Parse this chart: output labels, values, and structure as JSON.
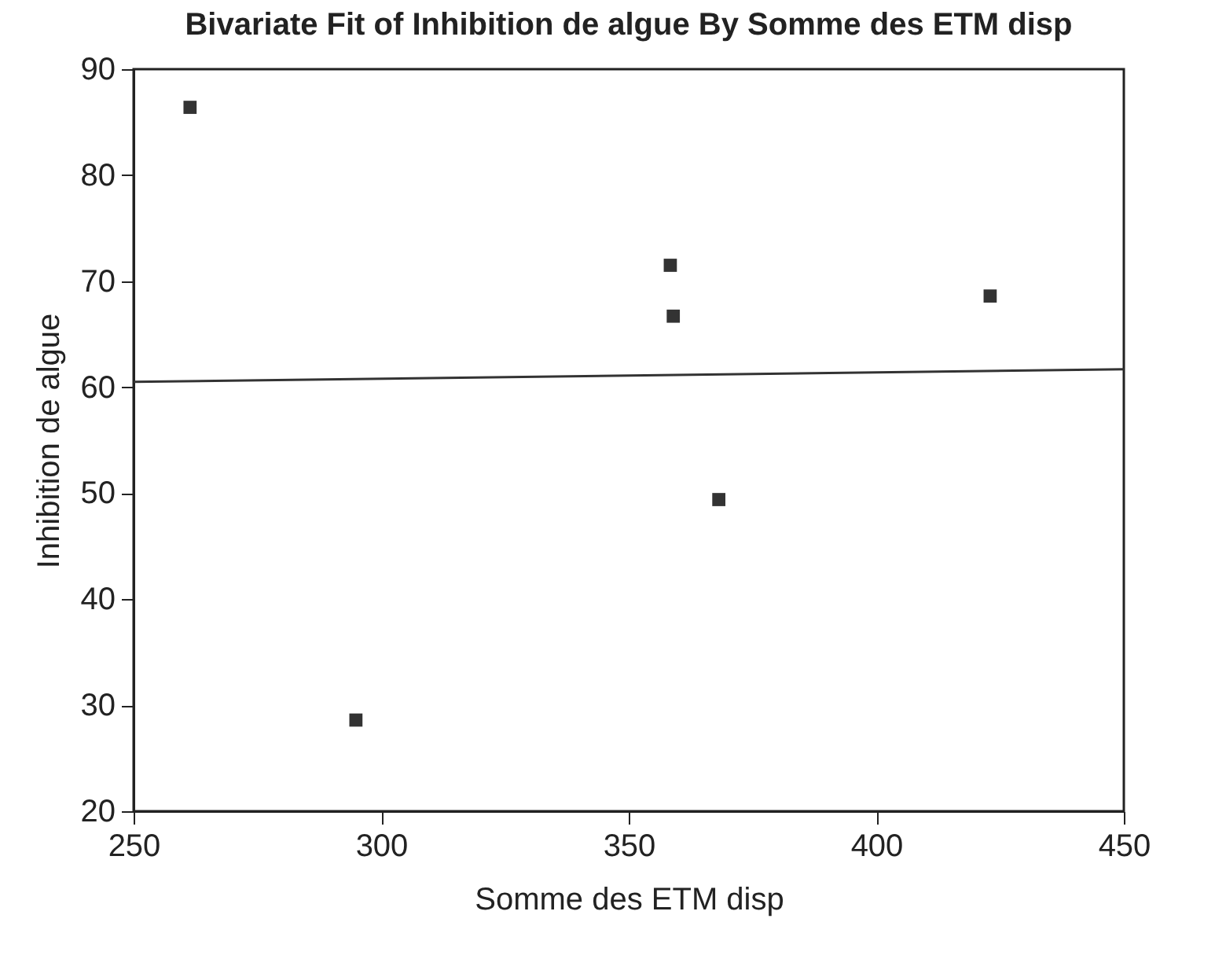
{
  "chart_data": {
    "type": "scatter",
    "title": "Bivariate Fit of Inhibition de algue By Somme des ETM disp",
    "xlabel": "Somme des ETM disp",
    "ylabel": "Inhibition de algue",
    "xlim": [
      250,
      450
    ],
    "xticks": [
      250,
      300,
      350,
      400,
      450
    ],
    "ylim": [
      20,
      90
    ],
    "yticks": [
      20,
      30,
      40,
      50,
      60,
      70,
      80,
      90
    ],
    "grid": false,
    "series": [
      {
        "marker": "square",
        "color": "#333333",
        "x": [
          261.4,
          294.9,
          358.4,
          359,
          368.2,
          423
        ],
        "values": [
          86.4,
          28.6,
          71.5,
          66.7,
          49.4,
          68.6
        ]
      },
      {
        "type": "line",
        "color": "#333333",
        "x": [
          250,
          450
        ],
        "values": [
          60.5,
          61.7
        ]
      }
    ]
  }
}
